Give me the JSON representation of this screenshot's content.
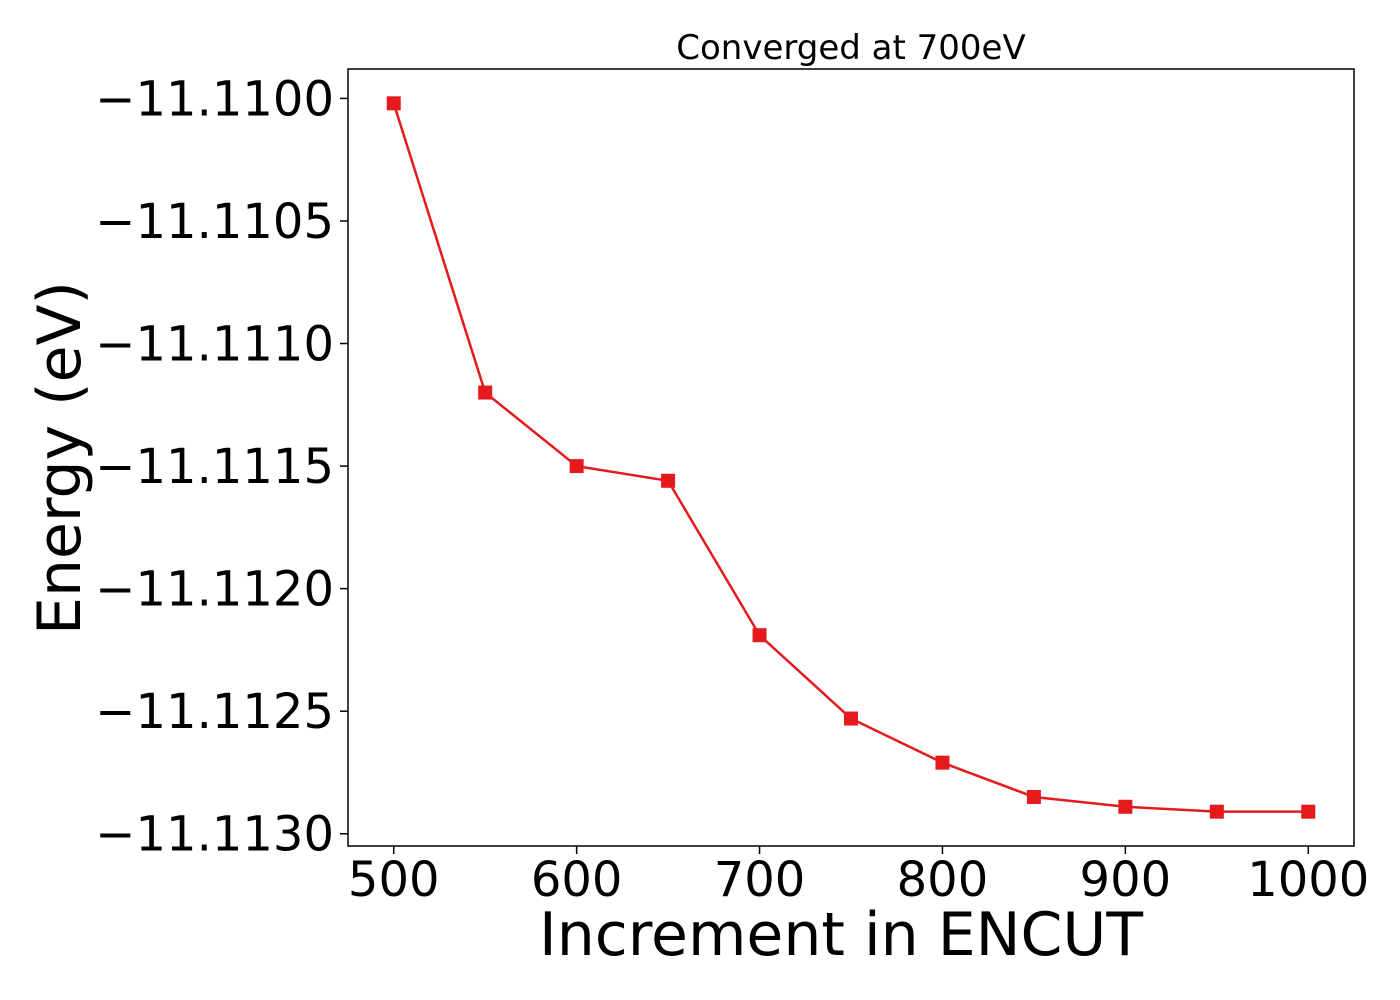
{
  "chart_data": {
    "type": "line",
    "title": "Converged at 700eV",
    "xlabel": "Increment in ENCUT",
    "ylabel": "Energy (eV)",
    "x": [
      500,
      550,
      600,
      650,
      700,
      750,
      800,
      850,
      900,
      950,
      1000
    ],
    "series": [
      {
        "values": [
          -11.11002,
          -11.1112,
          -11.1115,
          -11.11156,
          -11.11219,
          -11.11253,
          -11.11271,
          -11.11285,
          -11.11289,
          -11.11291,
          -11.11291
        ],
        "color": "#e41a1c",
        "marker": "square"
      }
    ],
    "xlim": [
      475,
      1025
    ],
    "ylim": [
      -11.11305,
      -11.10988
    ],
    "xticks": [
      500,
      600,
      700,
      800,
      900,
      1000
    ],
    "xtick_labels": [
      "500",
      "600",
      "700",
      "800",
      "900",
      "1000"
    ],
    "yticks": [
      -11.11,
      -11.1105,
      -11.111,
      -11.1115,
      -11.112,
      -11.1125,
      -11.113
    ],
    "ytick_labels": [
      "−11.1100",
      "−11.1105",
      "−11.1110",
      "−11.1115",
      "−11.1120",
      "−11.1125",
      "−11.1130"
    ],
    "grid": false,
    "legend": "none"
  }
}
